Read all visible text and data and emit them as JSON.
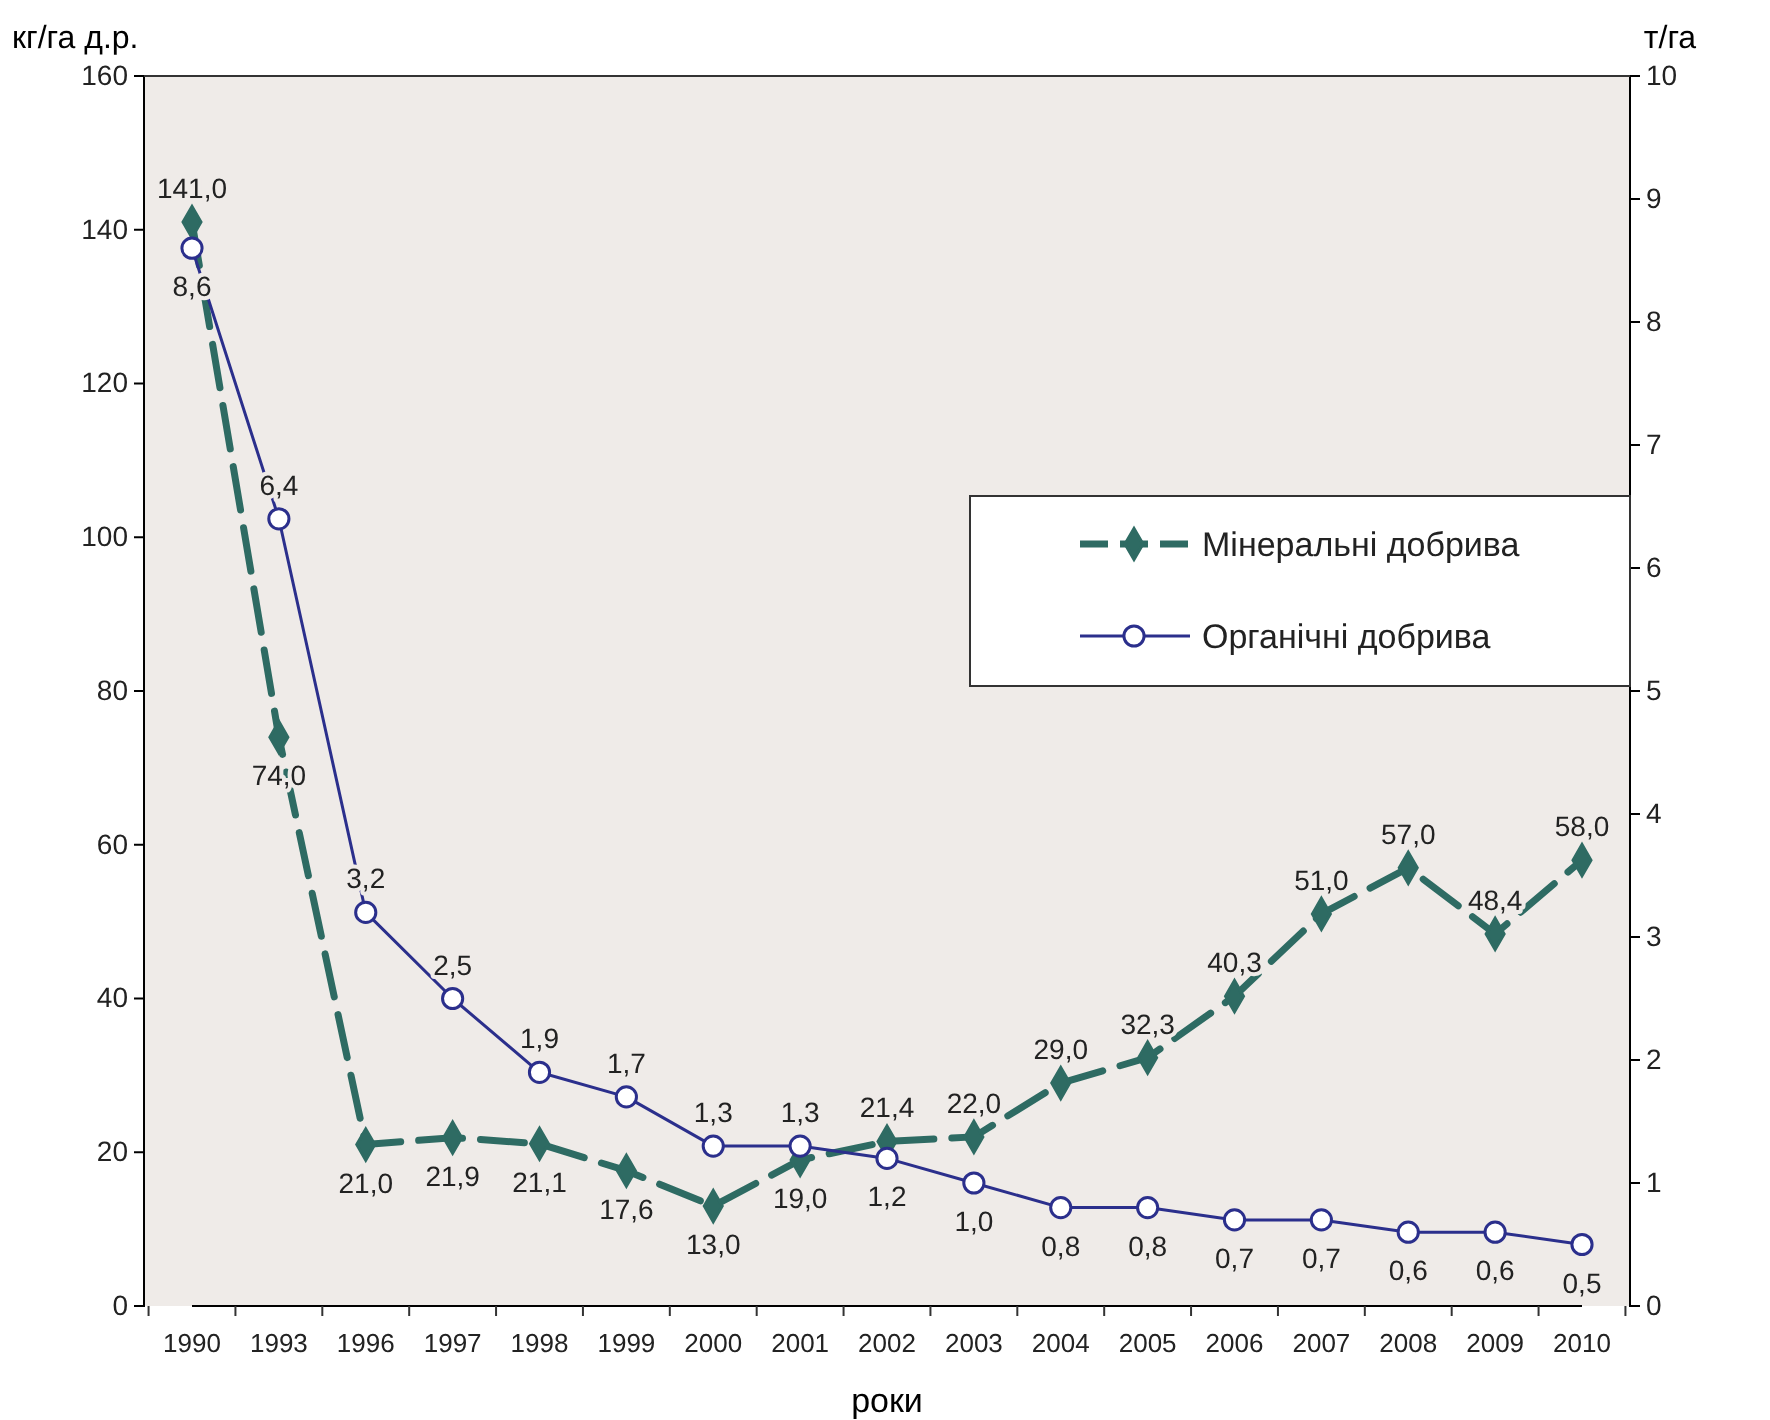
{
  "chart_data": {
    "type": "line",
    "xlabel": "роки",
    "ylabel": "кг/га д.р.",
    "y2label": "т/га",
    "categories": [
      "1990",
      "1993",
      "1996",
      "1997",
      "1998",
      "1999",
      "2000",
      "2001",
      "2002",
      "2003",
      "2004",
      "2005",
      "2006",
      "2007",
      "2008",
      "2009",
      "2010"
    ],
    "series": [
      {
        "name": "Мінеральні добрива",
        "color": "#2e6b63",
        "marker": "diamond",
        "line_style": "dashed",
        "values": [
          141.0,
          74.0,
          21.0,
          21.9,
          21.1,
          17.6,
          13.0,
          19.0,
          21.4,
          22.0,
          29.0,
          32.3,
          40.3,
          51.0,
          57.0,
          48.4,
          58.0
        ],
        "value_labels": [
          "141,0",
          "74,0",
          "21,0",
          "21,9",
          "21,1",
          "17,6",
          "13,0",
          "19,0",
          "21,4",
          "22,0",
          "29,0",
          "32,3",
          "40,3",
          "51,0",
          "57,0",
          "48,4",
          "58,0"
        ]
      },
      {
        "name": "Органічні добрива",
        "color": "#2b2f8c",
        "marker": "circle",
        "line_style": "solid",
        "axis": "y2",
        "values": [
          8.6,
          6.4,
          3.2,
          2.5,
          1.9,
          1.7,
          1.3,
          1.3,
          1.2,
          1.0,
          0.8,
          0.8,
          0.7,
          0.7,
          0.6,
          0.6,
          0.5
        ],
        "value_labels": [
          "8,6",
          "6,4",
          "3,2",
          "2,5",
          "1,9",
          "1,7",
          "1,3",
          "1,3",
          "1,2",
          "1,0",
          "0,8",
          "0,8",
          "0,7",
          "0,7",
          "0,6",
          "0,6",
          "0,5"
        ]
      }
    ],
    "ylim": [
      0,
      160
    ],
    "yticks": [
      0,
      20,
      40,
      60,
      80,
      100,
      120,
      140,
      160
    ],
    "y2lim": [
      0,
      10
    ],
    "y2ticks": [
      0,
      1,
      2,
      3,
      4,
      5,
      6,
      7,
      8,
      9,
      10
    ],
    "legend": "right",
    "grid": false
  }
}
